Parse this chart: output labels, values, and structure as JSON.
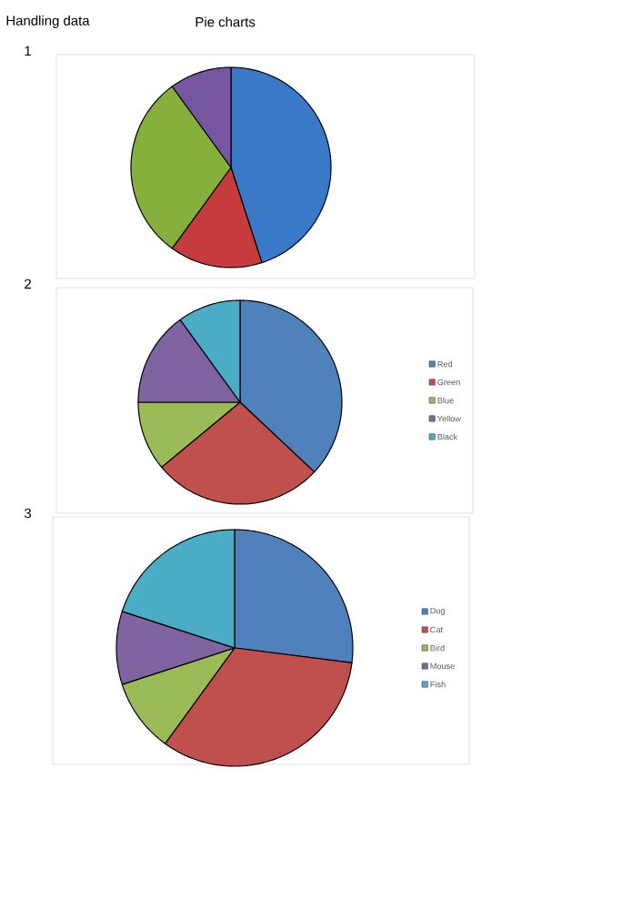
{
  "chart_data": [
    {
      "type": "pie",
      "title": "Handling data",
      "subtitle": "Pie charts",
      "annotations": [
        "1"
      ],
      "categories": [
        null,
        null,
        null,
        null
      ],
      "values": [
        45,
        15,
        30,
        10
      ],
      "colors": [
        "#3a78c8",
        "#c63c3c",
        "#86b03c",
        "#7656a0"
      ]
    },
    {
      "type": "pie",
      "annotations": [
        "2"
      ],
      "categories": [
        "Red",
        "Green",
        "Blue",
        "Yellow",
        "Black"
      ],
      "values": [
        37,
        27,
        11,
        15,
        10
      ],
      "colors": [
        "#4f81bd",
        "#c0504d",
        "#9bbb59",
        "#8064a2",
        "#4bacc6"
      ],
      "legend": "right"
    },
    {
      "type": "pie",
      "annotations": [
        "3"
      ],
      "categories": [
        "Dog",
        "Cat",
        "Bird",
        "Mouse",
        "Fish"
      ],
      "values": [
        27,
        33,
        10,
        10,
        20
      ],
      "colors": [
        "#4f81bd",
        "#c0504d",
        "#9bbb59",
        "#8064a2",
        "#4bacc6"
      ],
      "legend": "right"
    }
  ]
}
